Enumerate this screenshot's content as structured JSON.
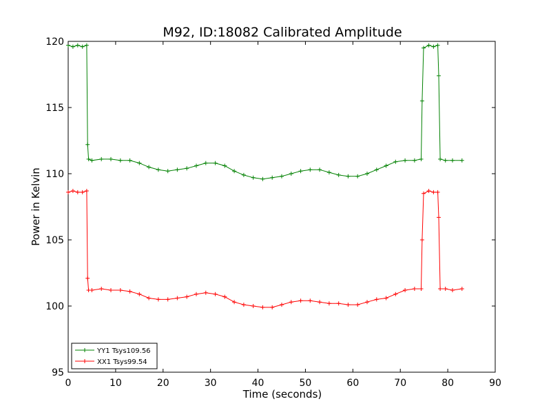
{
  "chart_data": {
    "type": "line",
    "title": "M92, ID:18082 Calibrated Amplitude",
    "xlabel": "Time (seconds)",
    "ylabel": "Power in Kelvin",
    "xlim": [
      0,
      90
    ],
    "ylim": [
      95,
      120
    ],
    "xticks": [
      0,
      10,
      20,
      30,
      40,
      50,
      60,
      70,
      80,
      90
    ],
    "yticks": [
      95,
      100,
      105,
      110,
      115,
      120
    ],
    "grid": false,
    "legend_position": "lower-left",
    "marker": "plus",
    "series": [
      {
        "name": "YY1 Tsys109.56",
        "color": "#008000",
        "x": [
          0,
          1,
          2,
          3,
          3.9,
          4.1,
          4.3,
          5,
          7,
          9,
          11,
          13,
          15,
          17,
          19,
          21,
          23,
          25,
          27,
          29,
          31,
          33,
          35,
          37,
          39,
          41,
          43,
          45,
          47,
          49,
          51,
          53,
          55,
          57,
          59,
          61,
          63,
          65,
          67,
          69,
          71,
          73,
          74.4,
          74.6,
          74.9,
          76,
          77,
          77.9,
          78.1,
          78.4,
          79.5,
          81,
          83
        ],
        "values": [
          119.7,
          119.6,
          119.7,
          119.6,
          119.7,
          112.2,
          111.1,
          111.0,
          111.1,
          111.1,
          111.0,
          111.0,
          110.8,
          110.5,
          110.3,
          110.2,
          110.3,
          110.4,
          110.6,
          110.8,
          110.8,
          110.6,
          110.2,
          109.9,
          109.7,
          109.6,
          109.7,
          109.8,
          110.0,
          110.2,
          110.3,
          110.3,
          110.1,
          109.9,
          109.8,
          109.8,
          110.0,
          110.3,
          110.6,
          110.9,
          111.0,
          111.0,
          111.1,
          115.5,
          119.5,
          119.7,
          119.6,
          119.7,
          117.4,
          111.1,
          111.0,
          111.0,
          111.0
        ]
      },
      {
        "name": "XX1 Tsys99.54",
        "color": "#ff0000",
        "x": [
          0,
          1,
          2,
          3,
          3.9,
          4.1,
          4.3,
          5,
          7,
          9,
          11,
          13,
          15,
          17,
          19,
          21,
          23,
          25,
          27,
          29,
          31,
          33,
          35,
          37,
          39,
          41,
          43,
          45,
          47,
          49,
          51,
          53,
          55,
          57,
          59,
          61,
          63,
          65,
          67,
          69,
          71,
          73,
          74.4,
          74.6,
          74.9,
          76,
          77,
          77.9,
          78.1,
          78.4,
          79.5,
          81,
          83
        ],
        "values": [
          108.6,
          108.7,
          108.6,
          108.6,
          108.7,
          102.1,
          101.2,
          101.2,
          101.3,
          101.2,
          101.2,
          101.1,
          100.9,
          100.6,
          100.5,
          100.5,
          100.6,
          100.7,
          100.9,
          101.0,
          100.9,
          100.7,
          100.3,
          100.1,
          100.0,
          99.9,
          99.9,
          100.1,
          100.3,
          100.4,
          100.4,
          100.3,
          100.2,
          100.2,
          100.1,
          100.1,
          100.3,
          100.5,
          100.6,
          100.9,
          101.2,
          101.3,
          101.3,
          105.0,
          108.5,
          108.7,
          108.6,
          108.6,
          106.7,
          101.3,
          101.3,
          101.2,
          101.3
        ]
      }
    ]
  }
}
